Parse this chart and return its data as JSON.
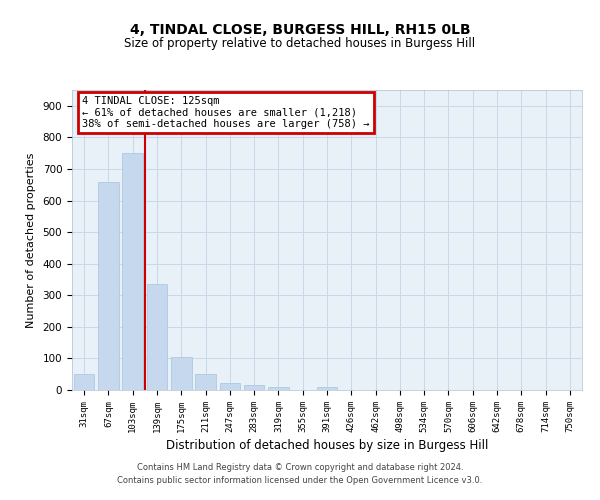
{
  "title1": "4, TINDAL CLOSE, BURGESS HILL, RH15 0LB",
  "title2": "Size of property relative to detached houses in Burgess Hill",
  "xlabel": "Distribution of detached houses by size in Burgess Hill",
  "ylabel": "Number of detached properties",
  "categories": [
    "31sqm",
    "67sqm",
    "103sqm",
    "139sqm",
    "175sqm",
    "211sqm",
    "247sqm",
    "283sqm",
    "319sqm",
    "355sqm",
    "391sqm",
    "426sqm",
    "462sqm",
    "498sqm",
    "534sqm",
    "570sqm",
    "606sqm",
    "642sqm",
    "678sqm",
    "714sqm",
    "750sqm"
  ],
  "values": [
    50,
    660,
    750,
    335,
    105,
    50,
    22,
    15,
    10,
    0,
    10,
    0,
    0,
    0,
    0,
    0,
    0,
    0,
    0,
    0,
    0
  ],
  "bar_color": "#c5d8ed",
  "bar_edgecolor": "#a8c4dc",
  "vline_x": 2.5,
  "vline_color": "#cc0000",
  "annotation_text": "4 TINDAL CLOSE: 125sqm\n← 61% of detached houses are smaller (1,218)\n38% of semi-detached houses are larger (758) →",
  "annotation_box_color": "#cc0000",
  "annotation_text_color": "#000000",
  "ylim": [
    0,
    950
  ],
  "yticks": [
    0,
    100,
    200,
    300,
    400,
    500,
    600,
    700,
    800,
    900
  ],
  "background_color": "#ffffff",
  "plot_bg_color": "#e8f0f8",
  "grid_color": "#c8d8e8",
  "footer1": "Contains HM Land Registry data © Crown copyright and database right 2024.",
  "footer2": "Contains public sector information licensed under the Open Government Licence v3.0."
}
